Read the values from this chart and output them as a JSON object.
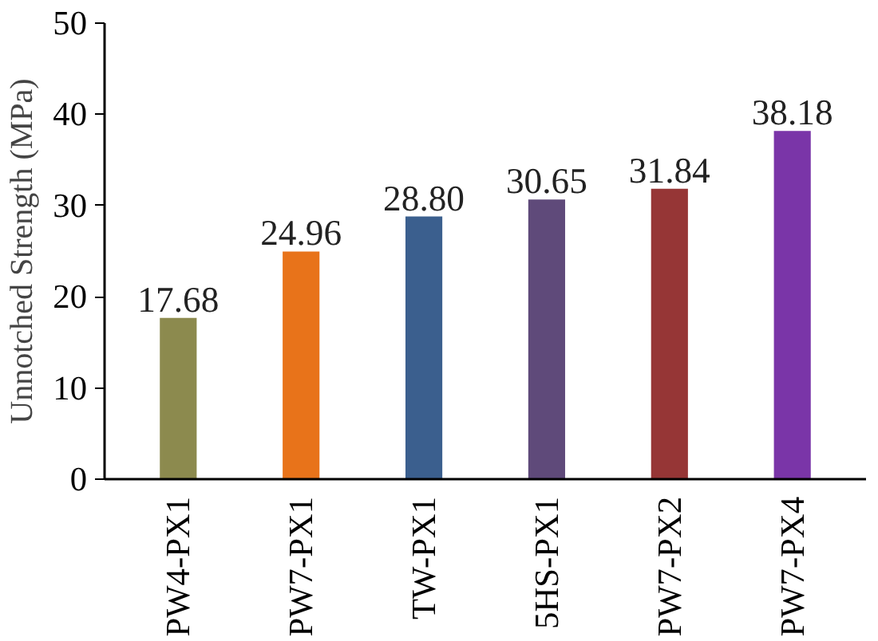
{
  "chart_data": {
    "type": "bar",
    "ylabel": "Unnotched Strength (MPa)",
    "categories": [
      "PW4-PX1",
      "PW7-PX1",
      "TW-PX1",
      "5HS-PX1",
      "PW7-PX2",
      "PW7-PX4"
    ],
    "values": [
      17.68,
      24.96,
      28.8,
      30.65,
      31.84,
      38.18
    ],
    "value_labels": [
      "17.68",
      "24.96",
      "28.80",
      "30.65",
      "31.84",
      "38.18"
    ],
    "colors": [
      "#8c8a4e",
      "#e8731a",
      "#3b5f8e",
      "#5f4a7a",
      "#963636",
      "#7a35a8"
    ],
    "ylim": [
      0,
      50
    ],
    "yticks": [
      0,
      10,
      20,
      30,
      40,
      50
    ],
    "grid": false
  }
}
